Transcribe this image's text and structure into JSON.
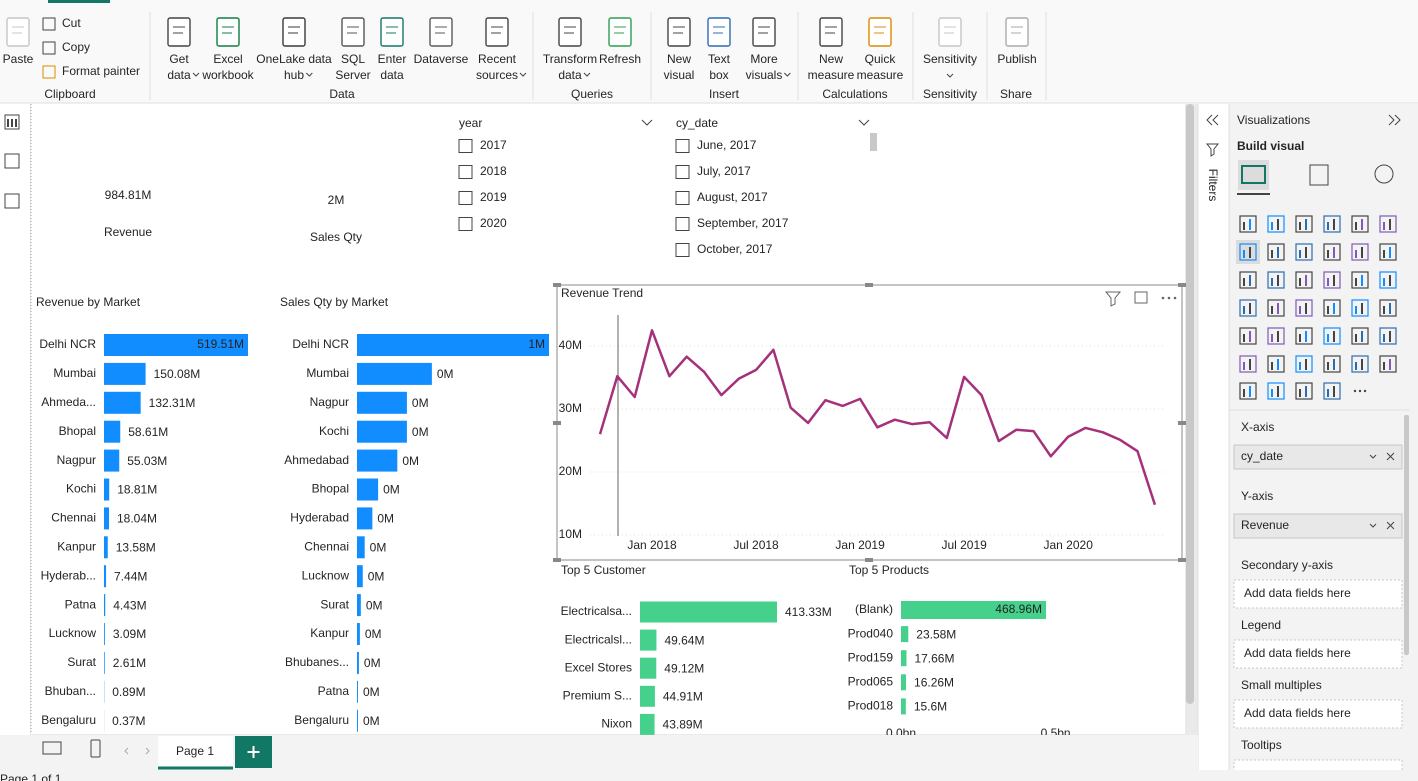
{
  "ribbon": {
    "groups": [
      {
        "label": "Clipboard",
        "buttons": [
          {
            "lines": [
              "Paste"
            ]
          }
        ],
        "small": [
          "Cut",
          "Copy",
          "Format painter"
        ]
      },
      {
        "label": "Data",
        "buttons": [
          {
            "lines": [
              "Get",
              "data"
            ]
          },
          {
            "lines": [
              "Excel",
              "workbook"
            ]
          },
          {
            "lines": [
              "OneLake data",
              "hub"
            ]
          },
          {
            "lines": [
              "SQL",
              "Server"
            ]
          },
          {
            "lines": [
              "Enter",
              "data"
            ]
          },
          {
            "lines": [
              "Dataverse"
            ]
          },
          {
            "lines": [
              "Recent",
              "sources"
            ]
          }
        ]
      },
      {
        "label": "Queries",
        "buttons": [
          {
            "lines": [
              "Transform",
              "data"
            ]
          },
          {
            "lines": [
              "Refresh"
            ]
          }
        ]
      },
      {
        "label": "Insert",
        "buttons": [
          {
            "lines": [
              "New",
              "visual"
            ]
          },
          {
            "lines": [
              "Text",
              "box"
            ]
          },
          {
            "lines": [
              "More",
              "visuals"
            ]
          }
        ]
      },
      {
        "label": "Calculations",
        "buttons": [
          {
            "lines": [
              "New",
              "measure"
            ]
          },
          {
            "lines": [
              "Quick",
              "measure"
            ]
          }
        ]
      },
      {
        "label": "Sensitivity",
        "buttons": [
          {
            "lines": [
              "Sensitivity"
            ]
          }
        ]
      },
      {
        "label": "Share",
        "buttons": [
          {
            "lines": [
              "Publish"
            ]
          }
        ]
      }
    ]
  },
  "cards": [
    {
      "value": "984.81M",
      "label": "Revenue"
    },
    {
      "value": "2M",
      "label": "Sales Qty"
    }
  ],
  "slicers": [
    {
      "title": "year",
      "items": [
        "2017",
        "2018",
        "2019",
        "2020"
      ]
    },
    {
      "title": "cy_date",
      "items": [
        "June, 2017",
        "July, 2017",
        "August, 2017",
        "September, 2017",
        "October, 2017"
      ]
    }
  ],
  "chart_data": [
    {
      "type": "bar",
      "title": "Revenue by Market",
      "color": "#118dff",
      "categories": [
        "Delhi NCR",
        "Mumbai",
        "Ahmeda...",
        "Bhopal",
        "Nagpur",
        "Kochi",
        "Chennai",
        "Kanpur",
        "Hyderab...",
        "Patna",
        "Lucknow",
        "Surat",
        "Bhuban...",
        "Bengaluru"
      ],
      "values": [
        519.51,
        150.08,
        132.31,
        58.61,
        55.03,
        18.81,
        18.04,
        13.58,
        7.44,
        4.43,
        3.09,
        2.61,
        0.89,
        0.37
      ],
      "value_labels": [
        "519.51M",
        "150.08M",
        "132.31M",
        "58.61M",
        "55.03M",
        "18.81M",
        "18.04M",
        "13.58M",
        "7.44M",
        "4.43M",
        "3.09M",
        "2.61M",
        "0.89M",
        "0.37M"
      ]
    },
    {
      "type": "bar",
      "title": "Sales Qty by Market",
      "color": "#118dff",
      "categories": [
        "Delhi NCR",
        "Mumbai",
        "Nagpur",
        "Kochi",
        "Ahmedabad",
        "Bhopal",
        "Hyderabad",
        "Chennai",
        "Lucknow",
        "Surat",
        "Kanpur",
        "Bhubanes...",
        "Patna",
        "Bengaluru"
      ],
      "values": [
        1,
        0.39,
        0.26,
        0.26,
        0.21,
        0.11,
        0.08,
        0.04,
        0.03,
        0.02,
        0.015,
        0.01,
        0.005,
        0.005
      ],
      "value_labels": [
        "1M",
        "0M",
        "0M",
        "0M",
        "0M",
        "0M",
        "0M",
        "0M",
        "0M",
        "0M",
        "0M",
        "0M",
        "0M",
        "0M"
      ]
    },
    {
      "type": "line",
      "title": "Revenue Trend",
      "color": "#a4317a",
      "x": [
        "Oct 2017",
        "Nov 2017",
        "Dec 2017",
        "Jan 2018",
        "Feb 2018",
        "Mar 2018",
        "Apr 2018",
        "May 2018",
        "Jun 2018",
        "Jul 2018",
        "Aug 2018",
        "Sep 2018",
        "Oct 2018",
        "Nov 2018",
        "Dec 2018",
        "Jan 2019",
        "Feb 2019",
        "Mar 2019",
        "Apr 2019",
        "May 2019",
        "Jun 2019",
        "Jul 2019",
        "Aug 2019",
        "Sep 2019",
        "Oct 2019",
        "Nov 2019",
        "Dec 2019",
        "Jan 2020",
        "Feb 2020",
        "Mar 2020",
        "Apr 2020",
        "May 2020",
        "Jun 2020"
      ],
      "values": [
        26.0,
        35.2,
        31.9,
        42.5,
        35.2,
        38.3,
        35.9,
        32.2,
        34.8,
        36.2,
        39.4,
        30.2,
        27.8,
        31.4,
        30.5,
        31.6,
        27.1,
        28.3,
        27.6,
        27.9,
        25.4,
        35.1,
        32.2,
        24.9,
        26.7,
        26.5,
        22.5,
        25.6,
        27.0,
        26.3,
        25.1,
        23.3,
        14.8
      ],
      "ylim": [
        8,
        45
      ],
      "yticks": [
        {
          "value": 10,
          "label": "10M"
        },
        {
          "value": 20,
          "label": "20M"
        },
        {
          "value": 30,
          "label": "30M"
        },
        {
          "value": 40,
          "label": "40M"
        }
      ],
      "xticks": [
        "Jan 2018",
        "Jul 2018",
        "Jan 2019",
        "Jul 2019",
        "Jan 2020"
      ],
      "grid": true
    },
    {
      "type": "bar",
      "title": "Top 5 Customer",
      "color": "#45d08c",
      "categories": [
        "Electricalsa...",
        "Electricalsl...",
        "Excel Stores",
        "Premium S...",
        "Nixon"
      ],
      "values": [
        413.33,
        49.64,
        49.12,
        44.91,
        43.89
      ],
      "value_labels": [
        "413.33M",
        "49.64M",
        "49.12M",
        "44.91M",
        "43.89M"
      ]
    },
    {
      "type": "bar",
      "title": "Top 5 Products",
      "color": "#45d08c",
      "categories": [
        "(Blank)",
        "Prod040",
        "Prod159",
        "Prod065",
        "Prod018"
      ],
      "values": [
        468.96,
        23.58,
        17.66,
        16.26,
        15.6
      ],
      "value_labels": [
        "468.96M",
        "23.58M",
        "17.66M",
        "16.26M",
        "15.6M"
      ],
      "xticks": [
        {
          "value": 0,
          "label": "0.0bn"
        },
        {
          "value": 500,
          "label": "0.5bn"
        }
      ]
    }
  ],
  "filters": {
    "title": "Filters"
  },
  "visualizations": {
    "title": "Visualizations",
    "subtitle": "Build visual",
    "wells": [
      {
        "label": "X-axis",
        "field": "cy_date"
      },
      {
        "label": "Y-axis",
        "field": "Revenue"
      },
      {
        "label": "Secondary y-axis",
        "placeholder": "Add data fields here"
      },
      {
        "label": "Legend",
        "placeholder": "Add data fields here"
      },
      {
        "label": "Small multiples",
        "placeholder": "Add data fields here"
      },
      {
        "label": "Tooltips"
      }
    ]
  },
  "pages": {
    "tabs": [
      "Page 1"
    ],
    "status": "Page 1 of 1"
  }
}
